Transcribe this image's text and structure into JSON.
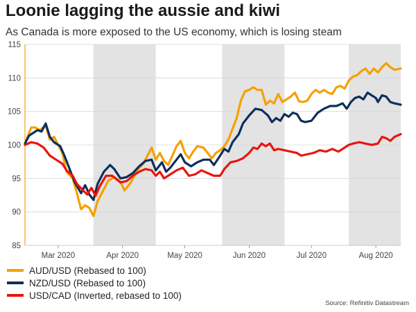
{
  "header": {
    "title": "Loonie lagging the aussie and kiwi",
    "subtitle": "As Canada is more exposed to the US economy, which is losing steam"
  },
  "source": "Source: Refinitiv Datastream",
  "colors": {
    "shade": "#e3e3e3",
    "axis": "#f0a020",
    "tick_text": "#444444"
  },
  "chart_data": {
    "type": "line",
    "title": "Loonie lagging the aussie and kiwi",
    "subtitle": "As Canada is more exposed to the US economy, which is losing steam",
    "x_range": [
      "2020-02-14",
      "2020-08-13"
    ],
    "ylim": [
      85,
      115
    ],
    "y_ticks": [
      85,
      90,
      95,
      100,
      105,
      110,
      115
    ],
    "x_tick_labels": [
      {
        "date": "2020-03-01",
        "label": "Mar 2020"
      },
      {
        "date": "2020-04-01",
        "label": "Apr 2020"
      },
      {
        "date": "2020-05-01",
        "label": "May 2020"
      },
      {
        "date": "2020-06-01",
        "label": "Jun 2020"
      },
      {
        "date": "2020-07-01",
        "label": "Jul 2020"
      },
      {
        "date": "2020-08-01",
        "label": "Aug 2020"
      }
    ],
    "shaded_periods": [
      [
        "2020-03-18",
        "2020-04-17"
      ],
      [
        "2020-05-19",
        "2020-06-18"
      ],
      [
        "2020-07-19",
        "2020-08-13"
      ]
    ],
    "grid": "horizontal",
    "legend_position": "bottom-left",
    "series": [
      {
        "name": "AUD/USD (Rebased to 100)",
        "color": "#f5a000",
        "points": [
          [
            "2020-02-14",
            100.2
          ],
          [
            "2020-02-17",
            102.6
          ],
          [
            "2020-02-19",
            102.6
          ],
          [
            "2020-02-21",
            102.2
          ],
          [
            "2020-02-24",
            102.9
          ],
          [
            "2020-02-26",
            100.8
          ],
          [
            "2020-02-28",
            101.2
          ],
          [
            "2020-03-03",
            98.8
          ],
          [
            "2020-03-05",
            96.0
          ],
          [
            "2020-03-08",
            95.0
          ],
          [
            "2020-03-10",
            92.8
          ],
          [
            "2020-03-12",
            90.4
          ],
          [
            "2020-03-14",
            91.0
          ],
          [
            "2020-03-16",
            90.6
          ],
          [
            "2020-03-18",
            89.4
          ],
          [
            "2020-03-20",
            91.6
          ],
          [
            "2020-03-22",
            92.8
          ],
          [
            "2020-03-25",
            94.6
          ],
          [
            "2020-03-28",
            95.2
          ],
          [
            "2020-03-31",
            94.5
          ],
          [
            "2020-04-02",
            93.2
          ],
          [
            "2020-04-05",
            94.4
          ],
          [
            "2020-04-08",
            96.2
          ],
          [
            "2020-04-11",
            97.2
          ],
          [
            "2020-04-13",
            98.4
          ],
          [
            "2020-04-15",
            99.6
          ],
          [
            "2020-04-17",
            97.8
          ],
          [
            "2020-04-19",
            98.8
          ],
          [
            "2020-04-21",
            97.6
          ],
          [
            "2020-04-23",
            97.0
          ],
          [
            "2020-04-25",
            98.4
          ],
          [
            "2020-04-27",
            99.8
          ],
          [
            "2020-04-29",
            100.6
          ],
          [
            "2020-05-01",
            98.8
          ],
          [
            "2020-05-03",
            98.0
          ],
          [
            "2020-05-05",
            99.0
          ],
          [
            "2020-05-07",
            99.8
          ],
          [
            "2020-05-10",
            99.6
          ],
          [
            "2020-05-12",
            98.8
          ],
          [
            "2020-05-14",
            98.0
          ],
          [
            "2020-05-16",
            98.8
          ],
          [
            "2020-05-18",
            99.2
          ],
          [
            "2020-05-20",
            99.8
          ],
          [
            "2020-05-22",
            100.8
          ],
          [
            "2020-05-24",
            102.4
          ],
          [
            "2020-05-26",
            104.0
          ],
          [
            "2020-05-28",
            106.6
          ],
          [
            "2020-05-30",
            108.0
          ],
          [
            "2020-06-01",
            108.2
          ],
          [
            "2020-06-03",
            108.6
          ],
          [
            "2020-06-05",
            108.2
          ],
          [
            "2020-06-07",
            108.2
          ],
          [
            "2020-06-09",
            106.0
          ],
          [
            "2020-06-11",
            106.6
          ],
          [
            "2020-06-13",
            106.2
          ],
          [
            "2020-06-15",
            107.6
          ],
          [
            "2020-06-17",
            106.4
          ],
          [
            "2020-06-19",
            106.8
          ],
          [
            "2020-06-21",
            107.2
          ],
          [
            "2020-06-23",
            107.8
          ],
          [
            "2020-06-25",
            106.5
          ],
          [
            "2020-06-27",
            106.4
          ],
          [
            "2020-06-29",
            106.6
          ],
          [
            "2020-07-01",
            107.6
          ],
          [
            "2020-07-03",
            108.2
          ],
          [
            "2020-07-05",
            107.8
          ],
          [
            "2020-07-07",
            108.2
          ],
          [
            "2020-07-09",
            107.8
          ],
          [
            "2020-07-11",
            107.6
          ],
          [
            "2020-07-13",
            108.6
          ],
          [
            "2020-07-15",
            108.8
          ],
          [
            "2020-07-17",
            108.4
          ],
          [
            "2020-07-19",
            109.6
          ],
          [
            "2020-07-21",
            110.2
          ],
          [
            "2020-07-23",
            110.4
          ],
          [
            "2020-07-25",
            111.0
          ],
          [
            "2020-07-27",
            111.4
          ],
          [
            "2020-07-29",
            110.6
          ],
          [
            "2020-07-31",
            111.4
          ],
          [
            "2020-08-02",
            110.8
          ],
          [
            "2020-08-04",
            111.6
          ],
          [
            "2020-08-06",
            112.2
          ],
          [
            "2020-08-08",
            111.6
          ],
          [
            "2020-08-10",
            111.2
          ],
          [
            "2020-08-13",
            111.4
          ]
        ]
      },
      {
        "name": "NZD/USD (Rebased to 100)",
        "color": "#0d2f5a",
        "points": [
          [
            "2020-02-14",
            100.2
          ],
          [
            "2020-02-16",
            101.4
          ],
          [
            "2020-02-18",
            101.8
          ],
          [
            "2020-02-20",
            102.2
          ],
          [
            "2020-02-22",
            102.0
          ],
          [
            "2020-02-24",
            103.2
          ],
          [
            "2020-02-26",
            101.2
          ],
          [
            "2020-02-28",
            100.4
          ],
          [
            "2020-03-02",
            99.8
          ],
          [
            "2020-03-04",
            98.4
          ],
          [
            "2020-03-06",
            96.8
          ],
          [
            "2020-03-09",
            94.4
          ],
          [
            "2020-03-12",
            92.8
          ],
          [
            "2020-03-14",
            94.0
          ],
          [
            "2020-03-16",
            92.6
          ],
          [
            "2020-03-18",
            91.8
          ],
          [
            "2020-03-20",
            94.2
          ],
          [
            "2020-03-23",
            96.0
          ],
          [
            "2020-03-26",
            97.0
          ],
          [
            "2020-03-28",
            96.4
          ],
          [
            "2020-03-31",
            95.0
          ],
          [
            "2020-04-03",
            95.2
          ],
          [
            "2020-04-06",
            95.8
          ],
          [
            "2020-04-09",
            96.8
          ],
          [
            "2020-04-12",
            97.6
          ],
          [
            "2020-04-15",
            97.8
          ],
          [
            "2020-04-17",
            96.2
          ],
          [
            "2020-04-20",
            97.4
          ],
          [
            "2020-04-22",
            96.0
          ],
          [
            "2020-04-24",
            96.6
          ],
          [
            "2020-04-27",
            97.8
          ],
          [
            "2020-04-29",
            98.6
          ],
          [
            "2020-05-01",
            97.4
          ],
          [
            "2020-05-04",
            96.8
          ],
          [
            "2020-05-07",
            97.4
          ],
          [
            "2020-05-10",
            97.8
          ],
          [
            "2020-05-13",
            97.8
          ],
          [
            "2020-05-15",
            97.0
          ],
          [
            "2020-05-18",
            98.4
          ],
          [
            "2020-05-20",
            99.4
          ],
          [
            "2020-05-22",
            99.0
          ],
          [
            "2020-05-24",
            100.4
          ],
          [
            "2020-05-27",
            101.6
          ],
          [
            "2020-05-29",
            103.2
          ],
          [
            "2020-06-01",
            104.4
          ],
          [
            "2020-06-04",
            105.4
          ],
          [
            "2020-06-07",
            105.2
          ],
          [
            "2020-06-10",
            104.4
          ],
          [
            "2020-06-12",
            103.4
          ],
          [
            "2020-06-14",
            104.0
          ],
          [
            "2020-06-16",
            103.6
          ],
          [
            "2020-06-18",
            104.6
          ],
          [
            "2020-06-20",
            104.2
          ],
          [
            "2020-06-22",
            104.8
          ],
          [
            "2020-06-24",
            104.6
          ],
          [
            "2020-06-26",
            103.6
          ],
          [
            "2020-06-28",
            103.4
          ],
          [
            "2020-07-01",
            103.6
          ],
          [
            "2020-07-04",
            104.8
          ],
          [
            "2020-07-07",
            105.4
          ],
          [
            "2020-07-10",
            105.8
          ],
          [
            "2020-07-13",
            105.8
          ],
          [
            "2020-07-16",
            106.2
          ],
          [
            "2020-07-18",
            105.4
          ],
          [
            "2020-07-20",
            106.4
          ],
          [
            "2020-07-22",
            107.0
          ],
          [
            "2020-07-24",
            107.2
          ],
          [
            "2020-07-26",
            106.8
          ],
          [
            "2020-07-28",
            107.8
          ],
          [
            "2020-07-30",
            107.4
          ],
          [
            "2020-08-01",
            107.0
          ],
          [
            "2020-08-02",
            106.4
          ],
          [
            "2020-08-04",
            107.4
          ],
          [
            "2020-08-06",
            107.2
          ],
          [
            "2020-08-08",
            106.4
          ],
          [
            "2020-08-10",
            106.2
          ],
          [
            "2020-08-13",
            106.0
          ]
        ]
      },
      {
        "name": "USD/CAD (Inverted, rebased to 100)",
        "color": "#e8160c",
        "points": [
          [
            "2020-02-14",
            100.0
          ],
          [
            "2020-02-17",
            100.4
          ],
          [
            "2020-02-20",
            100.2
          ],
          [
            "2020-02-23",
            99.6
          ],
          [
            "2020-02-26",
            98.4
          ],
          [
            "2020-02-29",
            97.8
          ],
          [
            "2020-03-03",
            97.2
          ],
          [
            "2020-03-05",
            96.2
          ],
          [
            "2020-03-08",
            95.4
          ],
          [
            "2020-03-10",
            94.2
          ],
          [
            "2020-03-13",
            93.2
          ],
          [
            "2020-03-15",
            92.6
          ],
          [
            "2020-03-17",
            93.6
          ],
          [
            "2020-03-19",
            92.4
          ],
          [
            "2020-03-21",
            93.8
          ],
          [
            "2020-03-24",
            95.4
          ],
          [
            "2020-03-27",
            95.4
          ],
          [
            "2020-03-31",
            94.4
          ],
          [
            "2020-04-03",
            94.6
          ],
          [
            "2020-04-06",
            95.4
          ],
          [
            "2020-04-09",
            96.0
          ],
          [
            "2020-04-12",
            96.4
          ],
          [
            "2020-04-15",
            96.2
          ],
          [
            "2020-04-17",
            95.4
          ],
          [
            "2020-04-19",
            96.0
          ],
          [
            "2020-04-21",
            95.0
          ],
          [
            "2020-04-24",
            95.6
          ],
          [
            "2020-04-27",
            96.2
          ],
          [
            "2020-04-30",
            96.6
          ],
          [
            "2020-05-03",
            95.4
          ],
          [
            "2020-05-06",
            95.6
          ],
          [
            "2020-05-09",
            96.2
          ],
          [
            "2020-05-12",
            95.8
          ],
          [
            "2020-05-15",
            95.4
          ],
          [
            "2020-05-18",
            95.4
          ],
          [
            "2020-05-20",
            96.4
          ],
          [
            "2020-05-23",
            97.4
          ],
          [
            "2020-05-26",
            97.6
          ],
          [
            "2020-05-29",
            98.0
          ],
          [
            "2020-06-01",
            98.8
          ],
          [
            "2020-06-03",
            99.6
          ],
          [
            "2020-06-05",
            99.4
          ],
          [
            "2020-06-07",
            100.2
          ],
          [
            "2020-06-09",
            99.8
          ],
          [
            "2020-06-11",
            100.2
          ],
          [
            "2020-06-13",
            99.2
          ],
          [
            "2020-06-15",
            99.4
          ],
          [
            "2020-06-18",
            99.2
          ],
          [
            "2020-06-21",
            99.0
          ],
          [
            "2020-06-24",
            98.8
          ],
          [
            "2020-06-26",
            98.4
          ],
          [
            "2020-06-29",
            98.6
          ],
          [
            "2020-07-02",
            98.8
          ],
          [
            "2020-07-05",
            99.2
          ],
          [
            "2020-07-08",
            99.0
          ],
          [
            "2020-07-11",
            99.4
          ],
          [
            "2020-07-14",
            99.0
          ],
          [
            "2020-07-17",
            99.6
          ],
          [
            "2020-07-19",
            100.0
          ],
          [
            "2020-07-21",
            100.2
          ],
          [
            "2020-07-24",
            100.4
          ],
          [
            "2020-07-27",
            100.2
          ],
          [
            "2020-07-30",
            100.0
          ],
          [
            "2020-08-02",
            100.2
          ],
          [
            "2020-08-04",
            101.2
          ],
          [
            "2020-08-06",
            101.0
          ],
          [
            "2020-08-08",
            100.6
          ],
          [
            "2020-08-10",
            101.2
          ],
          [
            "2020-08-13",
            101.6
          ]
        ]
      }
    ]
  }
}
